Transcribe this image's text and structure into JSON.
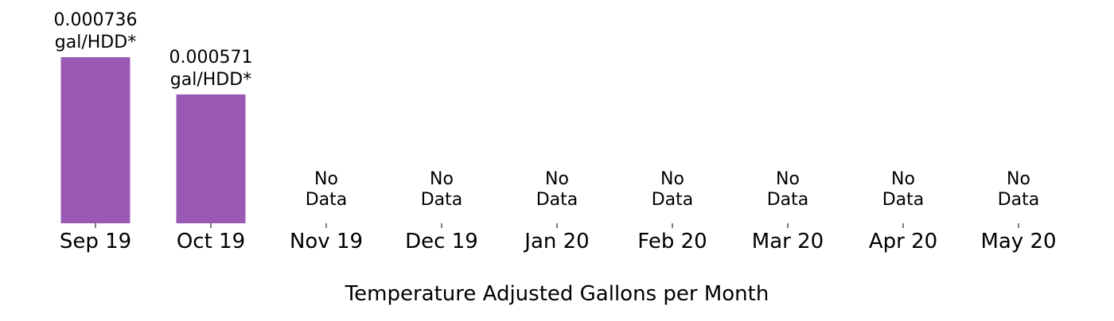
{
  "chart_data": {
    "type": "bar",
    "categories": [
      "Sep 19",
      "Oct 19",
      "Nov 19",
      "Dec 19",
      "Jan 20",
      "Feb 20",
      "Mar 20",
      "Apr 20",
      "May 20"
    ],
    "values": [
      0.000736,
      0.000571,
      null,
      null,
      null,
      null,
      null,
      null,
      null
    ],
    "value_labels": [
      [
        "0.000736",
        "gal/HDD*"
      ],
      [
        "0.000571",
        "gal/HDD*"
      ],
      null,
      null,
      null,
      null,
      null,
      null,
      null
    ],
    "no_data_label": [
      "No",
      "Data"
    ],
    "xlabel": "Temperature Adjusted Gallons per Month",
    "ylabel": "",
    "ylim": [
      0,
      0.000736
    ],
    "grid": false,
    "bar_color": "#9b59b6"
  }
}
